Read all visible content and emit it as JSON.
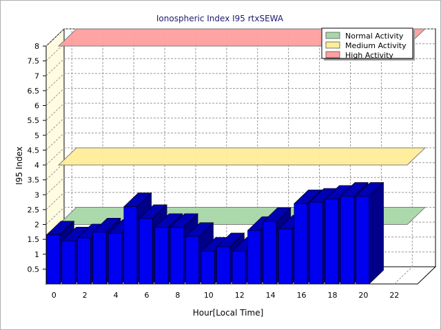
{
  "chart_data": {
    "type": "bar",
    "title": "Ionospheric Index I95 rtxSEWA",
    "xlabel": "Hour[Local Time]",
    "ylabel": "I95 Index",
    "x": [
      0,
      1,
      2,
      3,
      4,
      5,
      6,
      7,
      8,
      9,
      10,
      11,
      12,
      13,
      14,
      15,
      16,
      17,
      18,
      19,
      20
    ],
    "values": [
      1.65,
      1.45,
      1.55,
      1.75,
      1.7,
      2.6,
      2.2,
      1.9,
      1.9,
      1.6,
      1.1,
      1.25,
      1.1,
      1.8,
      2.1,
      1.85,
      2.7,
      2.75,
      2.85,
      2.95,
      2.95
    ],
    "x_ticks": [
      "0",
      "2",
      "4",
      "6",
      "8",
      "10",
      "12",
      "14",
      "16",
      "18",
      "20",
      "22"
    ],
    "y_ticks": [
      "0.5",
      "1",
      "1.5",
      "2",
      "2.5",
      "3",
      "3.5",
      "4",
      "4.5",
      "5",
      "5.5",
      "6",
      "6.5",
      "7",
      "7.5",
      "8"
    ],
    "xlim": [
      -0.5,
      23.5
    ],
    "ylim": [
      0,
      8
    ],
    "grid": true,
    "legend_position": "top-right",
    "bands": [
      {
        "name": "Normal Activity",
        "value": 2,
        "color": "#a8d8a8"
      },
      {
        "name": "Medium Activity",
        "value": 4,
        "color": "#ffee99"
      },
      {
        "name": "High Activity",
        "value": 8,
        "color": "#ff9f9f"
      }
    ],
    "bar_color": "#0000f0",
    "bar_top_color": "#0000b4",
    "bar_side_color": "#000088"
  }
}
